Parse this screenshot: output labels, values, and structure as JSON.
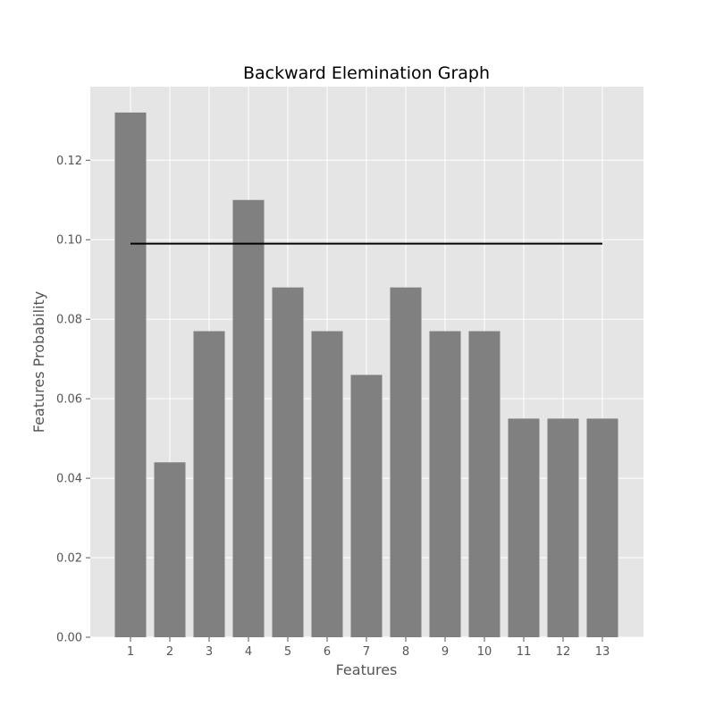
{
  "chart_data": {
    "type": "bar",
    "title": "Backward Elemination Graph",
    "xlabel": "Features",
    "ylabel": "Features Probability",
    "categories": [
      "1",
      "2",
      "3",
      "4",
      "5",
      "6",
      "7",
      "8",
      "9",
      "10",
      "11",
      "12",
      "13"
    ],
    "values": [
      0.132,
      0.044,
      0.077,
      0.11,
      0.088,
      0.077,
      0.066,
      0.088,
      0.077,
      0.077,
      0.055,
      0.055,
      0.055
    ],
    "yticks": [
      "0.00",
      "0.02",
      "0.04",
      "0.06",
      "0.08",
      "0.10",
      "0.12"
    ],
    "ylim": [
      0,
      0.1385
    ],
    "grid": true,
    "threshold_line": {
      "x": [
        "1",
        "13"
      ],
      "y": [
        0.099,
        0.099
      ]
    },
    "colors": {
      "bars": "#808080",
      "plot_background": "#e5e5e5",
      "grid": "#ffffff",
      "threshold_line": "#000000"
    }
  }
}
